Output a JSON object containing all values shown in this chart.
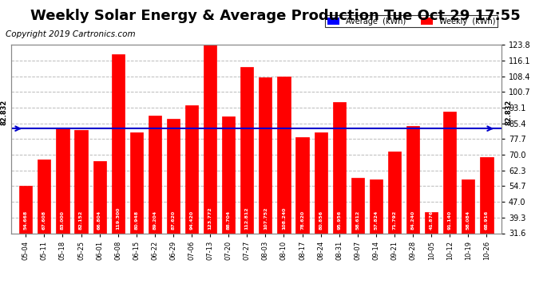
{
  "title": "Weekly Solar Energy & Average Production Tue Oct 29 17:55",
  "copyright": "Copyright 2019 Cartronics.com",
  "categories": [
    "05-04",
    "05-11",
    "05-18",
    "05-25",
    "06-01",
    "06-08",
    "06-15",
    "06-22",
    "06-29",
    "07-06",
    "07-13",
    "07-20",
    "07-27",
    "08-03",
    "08-10",
    "08-17",
    "08-24",
    "08-31",
    "09-07",
    "09-14",
    "09-21",
    "09-28",
    "10-05",
    "10-12",
    "10-19",
    "10-26"
  ],
  "values": [
    54.668,
    67.608,
    83.0,
    82.152,
    66.804,
    119.3,
    80.948,
    89.204,
    87.62,
    94.42,
    123.772,
    88.704,
    112.812,
    107.752,
    108.24,
    78.62,
    80.856,
    95.956,
    58.612,
    57.824,
    71.792,
    84.24,
    41.876,
    91.14,
    58.084,
    68.916
  ],
  "average": 82.832,
  "bar_color": "#FF0000",
  "bar_edge_color": "#FF0000",
  "avg_line_color": "#0000CC",
  "avg_label_color": "#000000",
  "background_color": "#FFFFFF",
  "plot_bg_color": "#FFFFFF",
  "grid_color": "#AAAAAA",
  "title_color": "#000000",
  "title_fontsize": 13,
  "copyright_fontsize": 7.5,
  "ytick_right": [
    31.6,
    39.3,
    47.0,
    54.7,
    62.3,
    70.0,
    77.7,
    85.4,
    93.1,
    100.7,
    108.4,
    116.1,
    123.8
  ],
  "ylim": [
    31.6,
    123.8
  ],
  "legend_avg_label": "Average  (kWh)",
  "legend_weekly_label": "Weekly  (kWh)"
}
